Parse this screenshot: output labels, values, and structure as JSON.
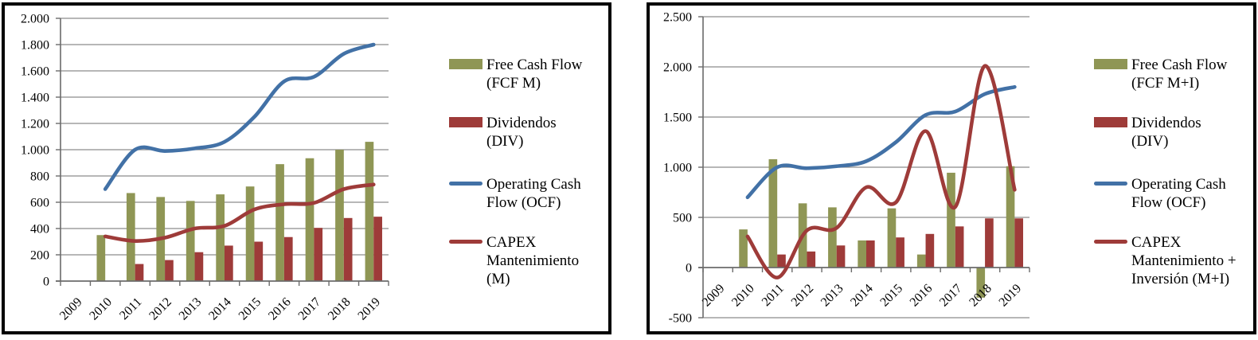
{
  "page": {
    "background": "#FFFFFF",
    "panel_border_color": "#000000",
    "gridline_color": "#8C8C8C",
    "axis_color": "#6B6B6B"
  },
  "chart_data": [
    {
      "type": "combo-bar-line",
      "panel": "left",
      "categories": [
        "2009",
        "2010",
        "2011",
        "2012",
        "2013",
        "2014",
        "2015",
        "2016",
        "2017",
        "2018",
        "2019"
      ],
      "series": [
        {
          "name": "Free Cash Flow (FCF M)",
          "legend_lines": [
            "Free Cash Flow",
            "(FCF M)"
          ],
          "type": "bar",
          "color": "#8F9655",
          "values": [
            null,
            350,
            670,
            640,
            610,
            660,
            720,
            890,
            935,
            1000,
            1060
          ]
        },
        {
          "name": "Dividendos (DIV)",
          "legend_lines": [
            "Dividendos",
            "(DIV)"
          ],
          "type": "bar",
          "color": "#9E3B39",
          "values": [
            null,
            null,
            130,
            160,
            220,
            270,
            300,
            335,
            405,
            480,
            490
          ]
        },
        {
          "name": "Operating Cash Flow (OCF)",
          "legend_lines": [
            "Operating Cash",
            "Flow (OCF)"
          ],
          "type": "line",
          "color": "#4271A6",
          "values": [
            null,
            700,
            1000,
            990,
            1010,
            1060,
            1250,
            1520,
            1555,
            1730,
            1800
          ]
        },
        {
          "name": "CAPEX Mantenimiento (M)",
          "legend_lines": [
            "CAPEX",
            "Mantenimiento",
            "(M)"
          ],
          "type": "line",
          "color": "#9E3B39",
          "values": [
            null,
            340,
            305,
            330,
            400,
            420,
            545,
            585,
            595,
            700,
            735
          ]
        }
      ],
      "ylim": [
        0,
        2000
      ],
      "ytick_step": 200,
      "ytick_labels": [
        "0",
        "200",
        "400",
        "600",
        "800",
        "1.000",
        "1.200",
        "1.400",
        "1.600",
        "1.800",
        "2.000"
      ],
      "grid": true,
      "legend_position": "right"
    },
    {
      "type": "combo-bar-line",
      "panel": "right",
      "categories": [
        "2009",
        "2010",
        "2011",
        "2012",
        "2013",
        "2014",
        "2015",
        "2016",
        "2017",
        "2018",
        "2019"
      ],
      "series": [
        {
          "name": "Free Cash Flow (FCF M+I)",
          "legend_lines": [
            "Free Cash Flow",
            "(FCF M+I)"
          ],
          "type": "bar",
          "color": "#8F9655",
          "values": [
            null,
            380,
            1080,
            640,
            600,
            270,
            590,
            130,
            945,
            -300,
            1010
          ]
        },
        {
          "name": "Dividendos (DIV)",
          "legend_lines": [
            "Dividendos",
            "(DIV)"
          ],
          "type": "bar",
          "color": "#9E3B39",
          "values": [
            null,
            null,
            130,
            160,
            220,
            270,
            300,
            335,
            410,
            490,
            490
          ]
        },
        {
          "name": "Operating Cash Flow (OCF)",
          "legend_lines": [
            "Operating Cash",
            "Flow (OCF)"
          ],
          "type": "line",
          "color": "#4271A6",
          "values": [
            null,
            700,
            1000,
            990,
            1010,
            1060,
            1250,
            1520,
            1555,
            1730,
            1800
          ]
        },
        {
          "name": "CAPEX Mantenimiento + Inversión (M+I)",
          "legend_lines": [
            "CAPEX",
            "Mantenimiento +",
            "Inversión (M+I)"
          ],
          "type": "line",
          "color": "#9E3B39",
          "values": [
            null,
            310,
            -100,
            370,
            395,
            800,
            650,
            1360,
            605,
            2010,
            775
          ]
        }
      ],
      "ylim": [
        -500,
        2500
      ],
      "ytick_step": 500,
      "ytick_labels": [
        "-500",
        "0",
        "500",
        "1.000",
        "1.500",
        "2.000",
        "2.500"
      ],
      "grid": true,
      "legend_position": "right"
    }
  ]
}
